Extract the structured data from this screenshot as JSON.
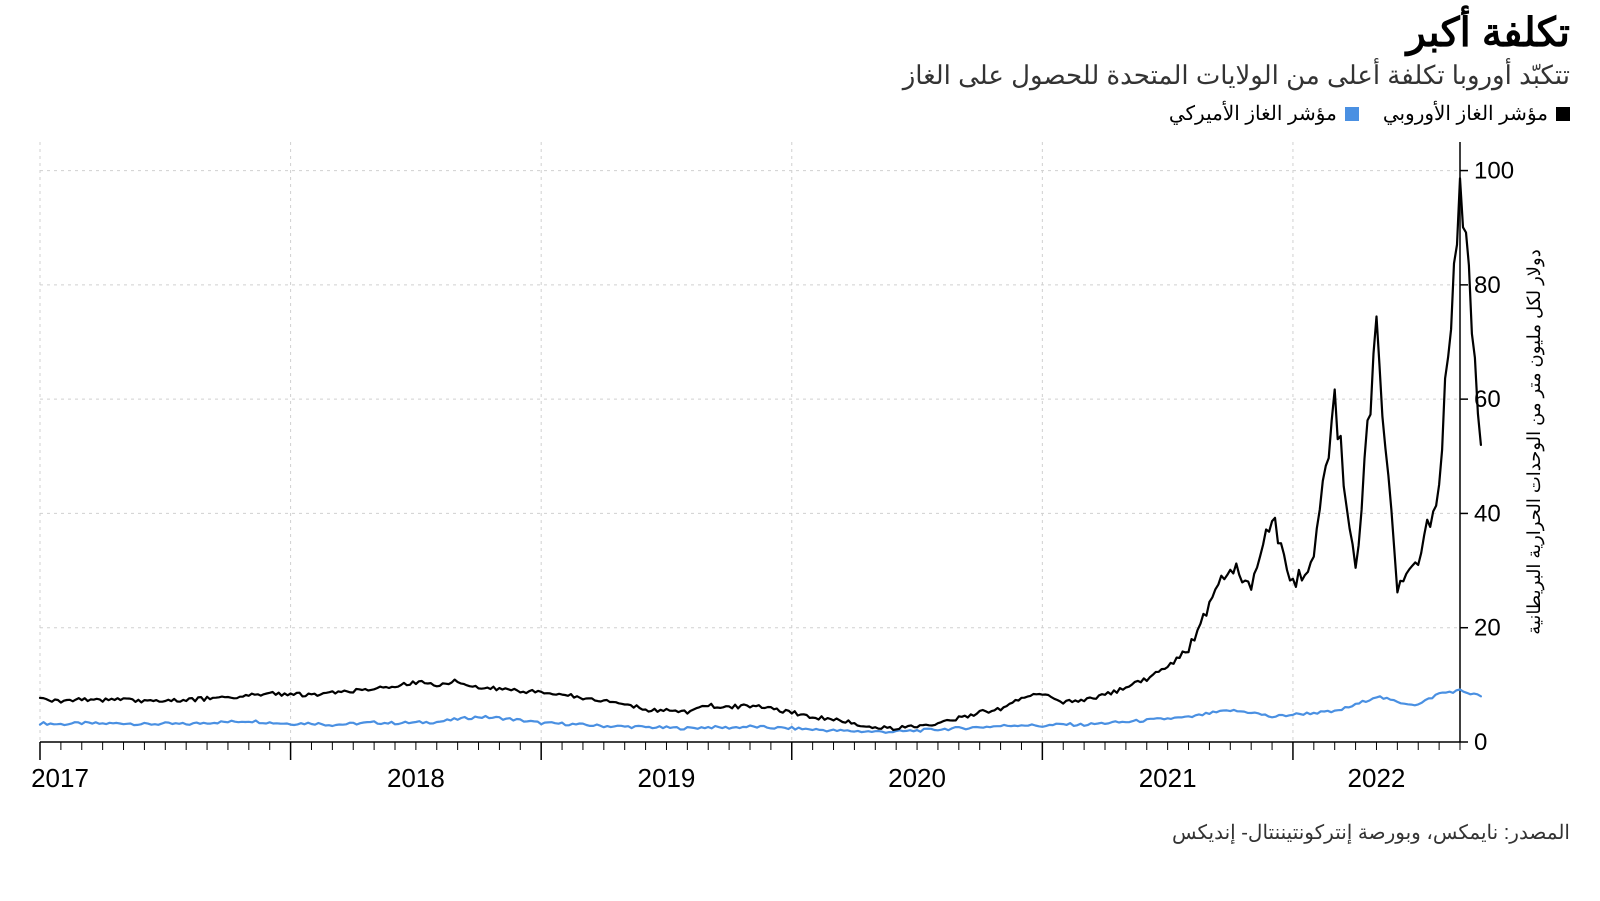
{
  "title": "تكلفة أكبر",
  "subtitle": "تتكبّد أوروبا تكلفة أعلى من الولايات المتحدة للحصول على الغاز",
  "legend": {
    "series1": {
      "label": "مؤشر الغاز الأوروبي",
      "color": "#000000"
    },
    "series2": {
      "label": "مؤشر الغاز الأميركي",
      "color": "#4a90e2"
    }
  },
  "source": "المصدر: نايمكس، وبورصة إنتركونتيننتال- إنديكس",
  "chart": {
    "type": "line",
    "background_color": "#ffffff",
    "grid_color": "#d0d0d0",
    "axis_color": "#000000",
    "tick_fontsize": 24,
    "axis_label_fontsize": 18,
    "y_axis_label": "دولار لكل مليون متر من الوحدات الحرارية البريطانية",
    "ylim": [
      0,
      105
    ],
    "yticks": [
      0,
      20,
      40,
      60,
      80,
      100
    ],
    "x_range_months": [
      0,
      68
    ],
    "x_major_ticks": [
      {
        "pos": 0,
        "label": "2017"
      },
      {
        "pos": 12,
        "label": "2018"
      },
      {
        "pos": 24,
        "label": "2019"
      },
      {
        "pos": 36,
        "label": "2020"
      },
      {
        "pos": 48,
        "label": "2021"
      },
      {
        "pos": 60,
        "label": "2022"
      }
    ],
    "x_minor_step": 1,
    "line_width": 2.2,
    "series_eu": {
      "color": "#000000",
      "data": [
        7.5,
        7.0,
        7.5,
        7.3,
        7.5,
        7.1,
        7.4,
        7.3,
        7.6,
        7.9,
        8.1,
        8.5,
        8.4,
        8.2,
        8.7,
        9.0,
        9.3,
        9.7,
        10.5,
        10.0,
        10.7,
        9.4,
        9.3,
        8.9,
        8.8,
        8.5,
        7.7,
        7.3,
        6.6,
        5.7,
        5.5,
        5.2,
        6.4,
        6.1,
        6.4,
        5.8,
        5.2,
        4.4,
        4.0,
        3.2,
        2.5,
        2.4,
        2.7,
        3.4,
        4.2,
        5.2,
        5.8,
        7.5,
        8.5,
        7.0,
        7.2,
        8.2,
        9.5,
        11.1,
        13.4,
        16.2,
        23.5,
        31.0,
        27.5,
        40,
        28,
        32.0,
        59.5,
        29.0,
        72.5,
        26.0,
        32.0,
        45.0,
        99.5,
        52.0
      ]
    },
    "series_us": {
      "color": "#4a90e2",
      "data": [
        3.3,
        3.1,
        3.3,
        3.2,
        3.3,
        3.1,
        3.2,
        3.1,
        3.4,
        3.5,
        3.7,
        3.4,
        3.2,
        3.3,
        3.0,
        3.2,
        3.4,
        3.3,
        3.4,
        3.5,
        4.0,
        4.4,
        4.2,
        3.8,
        3.3,
        3.2,
        3.0,
        2.8,
        2.7,
        2.6,
        2.5,
        2.4,
        2.6,
        2.5,
        2.7,
        2.5,
        2.4,
        2.2,
        2.0,
        1.9,
        1.8,
        1.8,
        2.0,
        2.2,
        2.4,
        2.6,
        2.8,
        3.0,
        2.8,
        3.1,
        3.0,
        3.3,
        3.5,
        3.8,
        4.1,
        4.3,
        5.0,
        5.5,
        5.2,
        4.4,
        4.8,
        5.1,
        5.3,
        6.5,
        8.0,
        7.0,
        6.5,
        8.5,
        9.0,
        8.0
      ]
    }
  }
}
